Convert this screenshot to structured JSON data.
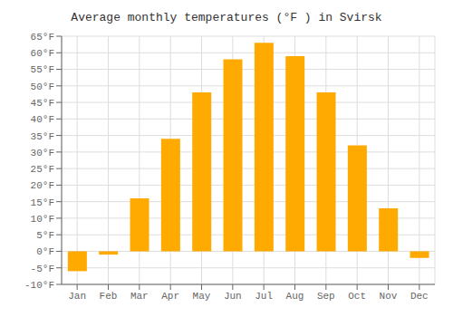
{
  "chart_data": {
    "type": "bar",
    "title": "Average monthly temperatures (°F ) in Svirsk",
    "categories": [
      "Jan",
      "Feb",
      "Mar",
      "Apr",
      "May",
      "Jun",
      "Jul",
      "Aug",
      "Sep",
      "Oct",
      "Nov",
      "Dec"
    ],
    "values": [
      -6,
      -1,
      16,
      34,
      48,
      58,
      63,
      59,
      48,
      32,
      13,
      -2
    ],
    "color": "#FFAA00",
    "ylim": [
      -10,
      65
    ],
    "yticks": [
      {
        "value": -10,
        "label": "-10°F"
      },
      {
        "value": -5,
        "label": "-5°F"
      },
      {
        "value": 0,
        "label": "0°F"
      },
      {
        "value": 5,
        "label": "5°F"
      },
      {
        "value": 10,
        "label": "10°F"
      },
      {
        "value": 15,
        "label": "15°F"
      },
      {
        "value": 20,
        "label": "20°F"
      },
      {
        "value": 25,
        "label": "25°F"
      },
      {
        "value": 30,
        "label": "30°F"
      },
      {
        "value": 35,
        "label": "35°F"
      },
      {
        "value": 40,
        "label": "40°F"
      },
      {
        "value": 45,
        "label": "45°F"
      },
      {
        "value": 50,
        "label": "50°F"
      },
      {
        "value": 55,
        "label": "55°F"
      },
      {
        "value": 60,
        "label": "60°F"
      },
      {
        "value": 65,
        "label": "65°F"
      }
    ],
    "grid": true
  }
}
